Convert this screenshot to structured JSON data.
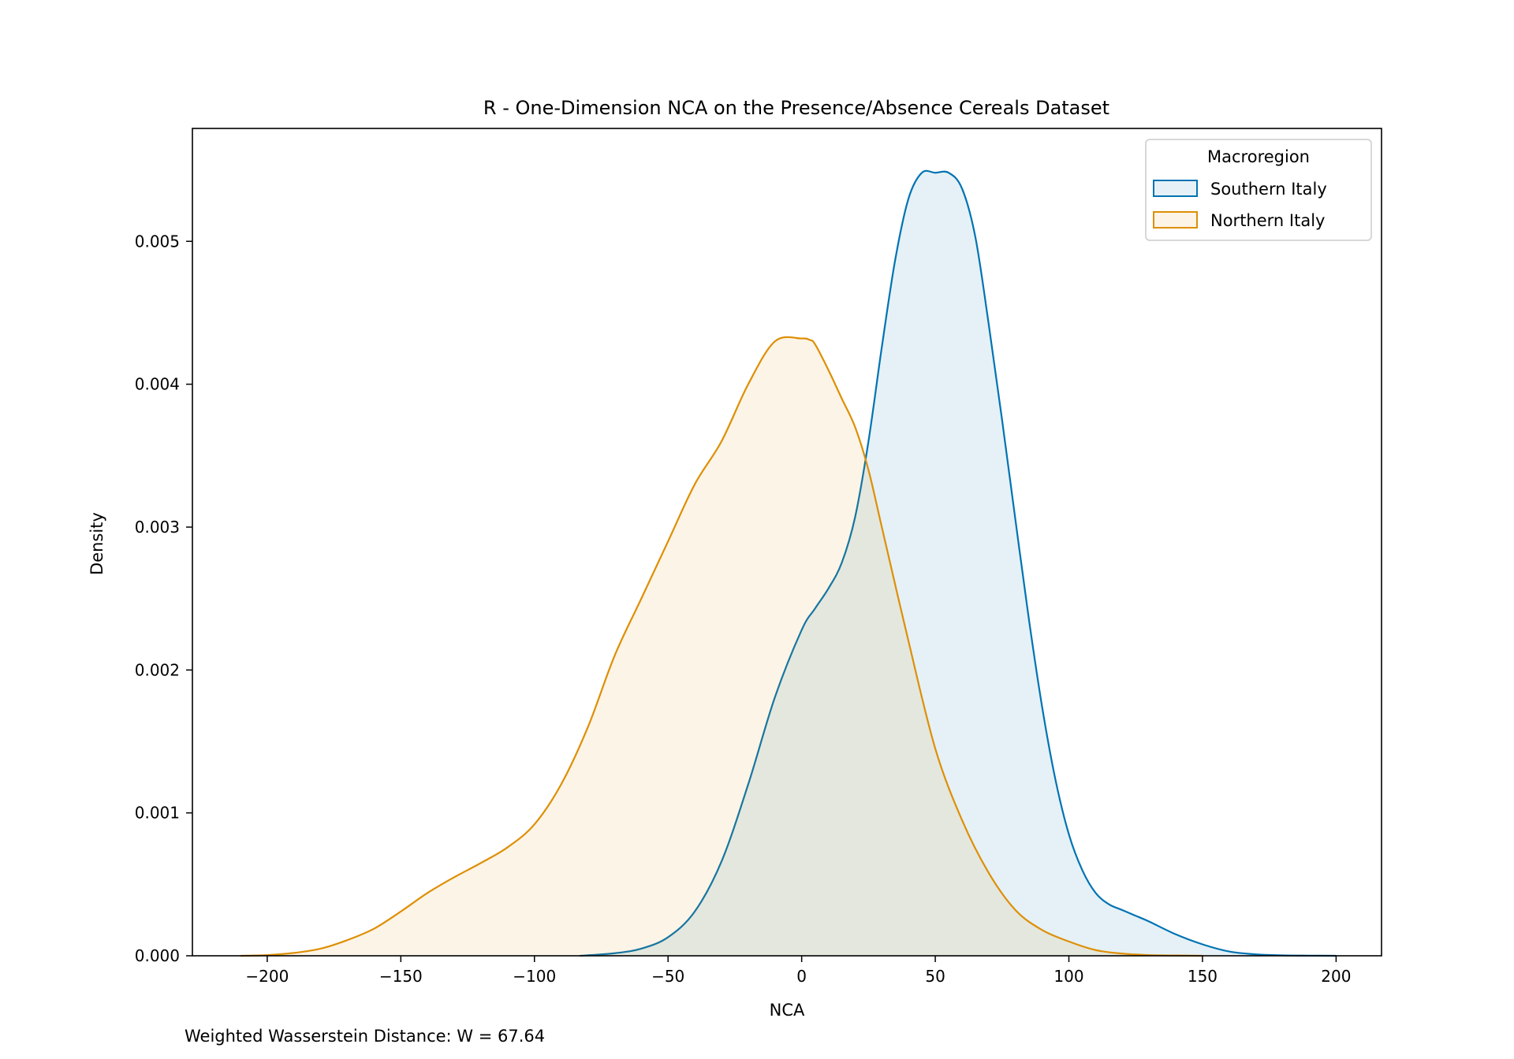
{
  "chart_data": {
    "type": "area",
    "title": "R - One-Dimension NCA on the Presence/Absence Cereals Dataset",
    "xlabel": "NCA",
    "ylabel": "Density",
    "xlim": [
      -228,
      217
    ],
    "ylim": [
      0,
      0.00579
    ],
    "xticks": [
      -200,
      -150,
      -100,
      -50,
      0,
      50,
      100,
      150,
      200
    ],
    "xtick_labels": [
      "−200",
      "−150",
      "−100",
      "−50",
      "0",
      "50",
      "100",
      "150",
      "200"
    ],
    "yticks": [
      0,
      0.001,
      0.002,
      0.003,
      0.004,
      0.005
    ],
    "ytick_labels": [
      "0.000",
      "0.001",
      "0.002",
      "0.003",
      "0.004",
      "0.005"
    ],
    "grid": false,
    "legend": {
      "title": "Macroregion",
      "placement": "top-right"
    },
    "annotation": "Weighted Wasserstein Distance: W = 67.64",
    "series": [
      {
        "name": "Southern Italy",
        "color": "#0173b2",
        "x": [
          -83,
          -70,
          -60,
          -50,
          -40,
          -30,
          -20,
          -10,
          0,
          5,
          10,
          15,
          20,
          25,
          30,
          35,
          40,
          45,
          50,
          55,
          60,
          65,
          70,
          75,
          80,
          85,
          90,
          95,
          100,
          105,
          110,
          115,
          120,
          125,
          130,
          140,
          150,
          160,
          170,
          180,
          190,
          200
        ],
        "y": [
          0,
          1.8e-05,
          5e-05,
          0.00013,
          0.00031,
          0.00066,
          0.0012,
          0.00181,
          0.00228,
          0.00243,
          0.00257,
          0.00275,
          0.00307,
          0.0036,
          0.00426,
          0.00487,
          0.0053,
          0.00548,
          0.00548,
          0.00548,
          0.00537,
          0.00503,
          0.00442,
          0.00375,
          0.00305,
          0.00236,
          0.00174,
          0.00123,
          0.00085,
          0.0006,
          0.00044,
          0.00036,
          0.00032,
          0.00028,
          0.00024,
          0.00015,
          8e-05,
          3e-05,
          1e-05,
          3e-06,
          1e-06,
          0
        ]
      },
      {
        "name": "Northern Italy",
        "color": "#de8f05",
        "x": [
          -210,
          -200,
          -190,
          -180,
          -170,
          -160,
          -150,
          -140,
          -130,
          -120,
          -110,
          -100,
          -90,
          -80,
          -70,
          -60,
          -50,
          -40,
          -30,
          -20,
          -10,
          0,
          3,
          5,
          10,
          15,
          20,
          25,
          30,
          40,
          50,
          60,
          70,
          80,
          90,
          100,
          110,
          120,
          130,
          140,
          150
        ],
        "y": [
          0,
          5e-06,
          2e-05,
          5e-05,
          0.00011,
          0.00019,
          0.00031,
          0.00044,
          0.00055,
          0.00065,
          0.00076,
          0.00092,
          0.0012,
          0.0016,
          0.0021,
          0.0025,
          0.0029,
          0.0033,
          0.0036,
          0.004,
          0.0043,
          0.00432,
          0.00431,
          0.00428,
          0.0041,
          0.0039,
          0.0037,
          0.0034,
          0.003,
          0.0022,
          0.00145,
          0.00095,
          0.00058,
          0.00032,
          0.00018,
          0.0001,
          4e-05,
          1.5e-05,
          5e-06,
          2e-06,
          0
        ]
      }
    ]
  }
}
